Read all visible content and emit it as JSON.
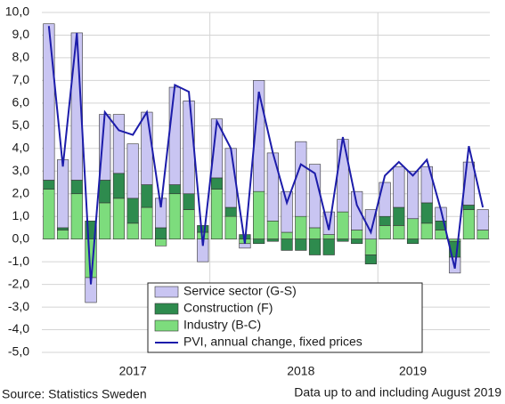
{
  "chart_data": {
    "type": "bar",
    "stacked": true,
    "categories": [
      null,
      null,
      null,
      null,
      null,
      null,
      "2017",
      null,
      null,
      null,
      null,
      null,
      null,
      null,
      null,
      null,
      null,
      null,
      "2018",
      null,
      null,
      null,
      null,
      null,
      null,
      null,
      "2019",
      null,
      null,
      null,
      null,
      null
    ],
    "series": [
      {
        "name": "Industry (B-C)",
        "color": "#7ddc7d",
        "values": [
          2.2,
          0.4,
          2.0,
          -1.7,
          1.6,
          1.8,
          0.7,
          1.4,
          -0.3,
          2.0,
          1.3,
          0.3,
          2.2,
          1.0,
          -0.2,
          2.1,
          0.8,
          0.3,
          1.0,
          0.5,
          0.2,
          1.2,
          0.4,
          -0.7,
          0.6,
          0.6,
          0.9,
          0.7,
          0.4,
          -0.1,
          1.3,
          0.4
        ]
      },
      {
        "name": "Construction (F)",
        "color": "#2e8b4e",
        "values": [
          0.4,
          0.1,
          0.6,
          0.8,
          1.0,
          1.1,
          1.1,
          1.0,
          0.5,
          0.4,
          0.7,
          0.3,
          0.5,
          0.4,
          0.2,
          -0.2,
          -0.1,
          -0.5,
          -0.5,
          -0.7,
          -0.7,
          -0.1,
          -0.2,
          -0.4,
          0.4,
          0.8,
          -0.2,
          0.9,
          0.4,
          -0.7,
          0.2,
          0.0
        ]
      },
      {
        "name": "Service sector (G-S)",
        "color": "#c9c5f2",
        "values": [
          6.9,
          3.0,
          6.5,
          -1.1,
          2.9,
          2.6,
          2.4,
          3.2,
          1.3,
          4.3,
          4.1,
          -1.0,
          2.6,
          2.6,
          -0.2,
          4.9,
          3.0,
          1.8,
          3.3,
          2.8,
          1.0,
          3.2,
          1.7,
          1.3,
          1.5,
          1.8,
          2.1,
          1.6,
          0.6,
          -0.7,
          1.9,
          0.9
        ]
      },
      {
        "name": "PVI, annual change, fixed prices",
        "color": "#1c1caa",
        "type": "line",
        "values": [
          9.4,
          3.2,
          9.1,
          -2.0,
          5.6,
          4.8,
          4.6,
          5.6,
          1.4,
          6.8,
          6.5,
          -0.3,
          5.2,
          4.0,
          -0.2,
          6.5,
          3.8,
          1.6,
          3.3,
          2.9,
          0.4,
          4.5,
          1.5,
          0.3,
          2.8,
          3.4,
          2.8,
          3.5,
          1.3,
          -1.3,
          4.1,
          1.4
        ]
      }
    ],
    "ylim": [
      -5,
      10
    ],
    "yticks": [
      {
        "value": -5,
        "label": "-5,0"
      },
      {
        "value": -4,
        "label": "-4,0"
      },
      {
        "value": -3,
        "label": "-3,0"
      },
      {
        "value": -2,
        "label": "-2,0"
      },
      {
        "value": -1,
        "label": "-1,0"
      },
      {
        "value": 0,
        "label": "0,0"
      },
      {
        "value": 1,
        "label": "1,0"
      },
      {
        "value": 2,
        "label": "2,0"
      },
      {
        "value": 3,
        "label": "3,0"
      },
      {
        "value": 4,
        "label": "4,0"
      },
      {
        "value": 5,
        "label": "5,0"
      },
      {
        "value": 6,
        "label": "6,0"
      },
      {
        "value": 7,
        "label": "7,0"
      },
      {
        "value": 8,
        "label": "8,0"
      },
      {
        "value": 9,
        "label": "9,0"
      },
      {
        "value": 10,
        "label": "10,0"
      }
    ],
    "grid": true,
    "source": "Source: Statistics Sweden",
    "note": "Data up to and including August 2019"
  }
}
